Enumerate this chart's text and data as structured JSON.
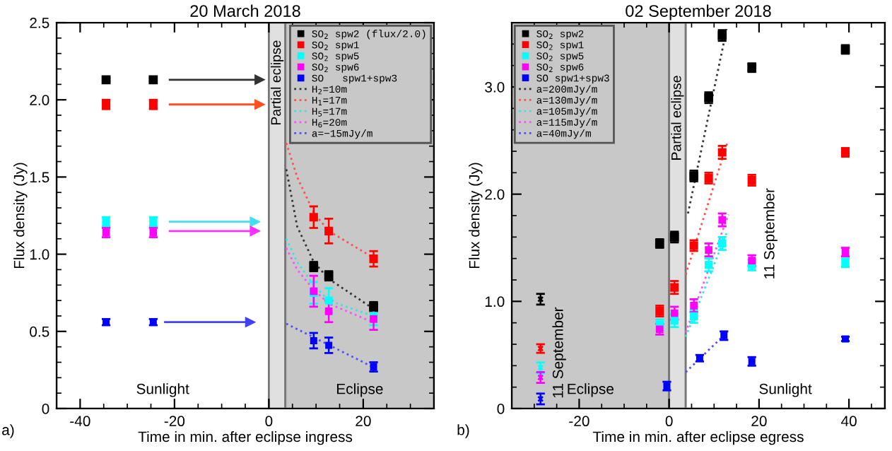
{
  "chart_data": [
    {
      "type": "scatter",
      "title": "20 March 2018",
      "xlabel": "Time in min. after eclipse ingress",
      "ylabel": "Flux density (Jy)",
      "xlim": [
        -45,
        35
      ],
      "xticks": [
        -40,
        -20,
        0,
        20
      ],
      "ylim": [
        0,
        2.5
      ],
      "yticks": [
        0,
        0.5,
        {
          "value": 1.0,
          "label": "1.0"
        },
        1.5,
        {
          "value": 2.0,
          "label": "2.0"
        },
        2.5
      ],
      "legend": "top right",
      "bands": [
        {
          "axis": "x",
          "from": -45,
          "to": 0,
          "label": "Sunlight",
          "color": "#ffffff"
        },
        {
          "axis": "x",
          "from": 0,
          "to": 3.5,
          "label": "Partial eclipse",
          "color": "#e0e0e0"
        },
        {
          "axis": "x",
          "from": 3.5,
          "to": 35,
          "label": "Eclipse",
          "color": "#c8c8c8"
        }
      ],
      "annotations": [
        "a)"
      ],
      "series": [
        {
          "name": "SO$_{2}$ spw2 (flux/2.0)",
          "color": "#000000",
          "marker": "square",
          "x": [
            -34.5,
            -24.5,
            9.5,
            12.7,
            22.2
          ],
          "values": [
            2.13,
            2.13,
            0.92,
            0.86,
            0.66
          ],
          "errors": [
            0.01,
            0.01,
            0.03,
            0.03,
            0.03
          ]
        },
        {
          "name": "SO$_{2}$ spw1",
          "color": "#ff0000",
          "marker": "square",
          "x": [
            -34.5,
            -24.5,
            9.5,
            12.7,
            22.2
          ],
          "values": [
            1.97,
            1.97,
            1.24,
            1.15,
            0.97
          ],
          "errors": [
            0.03,
            0.03,
            0.07,
            0.08,
            0.05
          ]
        },
        {
          "name": "SO$_{2}$ spw5",
          "color": "#00ffff",
          "marker": "square",
          "x": [
            -34.5,
            -24.5,
            9.5,
            12.7,
            22.2
          ],
          "values": [
            1.21,
            1.21,
            0.75,
            0.7,
            0.6
          ],
          "errors": [
            0.03,
            0.03,
            0.07,
            0.08,
            0.06
          ]
        },
        {
          "name": "SO$_{2}$ spw6",
          "color": "#ff00ff",
          "marker": "square",
          "x": [
            -34.5,
            -24.5,
            9.5,
            12.7,
            22.2
          ],
          "values": [
            1.14,
            1.14,
            0.76,
            0.63,
            0.58
          ],
          "errors": [
            0.03,
            0.03,
            0.1,
            0.07,
            0.07
          ]
        },
        {
          "name": "SO   spw1+spw3",
          "color": "#0000ff",
          "marker": "square",
          "x": [
            -34.5,
            -24.5,
            9.5,
            12.7,
            22.2
          ],
          "values": [
            0.56,
            0.56,
            0.44,
            0.41,
            0.27
          ],
          "errors": [
            0.02,
            0.02,
            0.05,
            0.05,
            0.03
          ]
        },
        {
          "type": "line",
          "name": "H$_{2}$=10m",
          "color": "#333333",
          "line_style": "dotted",
          "x": [
            3.7,
            6,
            9.5,
            12.7,
            22
          ],
          "values": [
            1.55,
            1.18,
            0.95,
            0.84,
            0.65
          ]
        },
        {
          "type": "line",
          "name": "H$_{1}$=17m",
          "color": "#ff5050",
          "line_style": "dotted",
          "x": [
            3.7,
            6,
            9.5,
            12.7,
            22
          ],
          "values": [
            1.72,
            1.5,
            1.27,
            1.15,
            0.98
          ]
        },
        {
          "type": "line",
          "name": "H$_{5}$=17m",
          "color": "#40e0e0",
          "line_style": "dotted",
          "x": [
            3.7,
            6,
            9.5,
            12.7,
            22
          ],
          "values": [
            1.1,
            0.95,
            0.8,
            0.7,
            0.6
          ]
        },
        {
          "type": "line",
          "name": "H$_{6}$=20m",
          "color": "#ff50ff",
          "line_style": "dotted",
          "x": [
            3.7,
            6,
            9.5,
            12.7,
            22
          ],
          "values": [
            1.04,
            0.9,
            0.77,
            0.68,
            0.56
          ]
        },
        {
          "type": "line",
          "name": "a=−15mJy/m",
          "color": "#5050ff",
          "line_style": "dotted",
          "x": [
            3.7,
            22
          ],
          "values": [
            0.55,
            0.27
          ]
        },
        {
          "type": "line",
          "color": "#333333",
          "line_style": "solid",
          "marker": "triangle",
          "x": [
            -21,
            -2
          ],
          "values": [
            2.13,
            2.13
          ]
        },
        {
          "type": "line",
          "color": "#ff5020",
          "line_style": "solid",
          "marker": "triangle",
          "x": [
            -21,
            -2
          ],
          "values": [
            1.97,
            1.97
          ]
        },
        {
          "type": "line",
          "color": "#40e0f0",
          "line_style": "solid",
          "marker": "triangle",
          "x": [
            -21,
            -3
          ],
          "values": [
            1.21,
            1.21
          ]
        },
        {
          "type": "line",
          "color": "#ff30ff",
          "line_style": "solid",
          "marker": "triangle",
          "x": [
            -21,
            -3
          ],
          "values": [
            1.15,
            1.15
          ]
        },
        {
          "type": "line",
          "color": "#4040ff",
          "line_style": "solid",
          "marker": "triangle",
          "x": [
            -22,
            -4
          ],
          "values": [
            0.56,
            0.56
          ]
        }
      ]
    },
    {
      "type": "scatter",
      "title": "02 September 2018",
      "xlabel": "Time in min. after eclipse egress",
      "ylabel": "Flux density (Jy)",
      "xlim": [
        -35,
        48
      ],
      "xticks": [
        -20,
        0,
        20,
        40
      ],
      "ylim": [
        0,
        3.6
      ],
      "yticks": [
        0,
        {
          "value": 1.0,
          "label": "1.0"
        },
        {
          "value": 2.0,
          "label": "2.0"
        },
        {
          "value": 3.0,
          "label": "3.0"
        }
      ],
      "legend": "top left",
      "bands": [
        {
          "axis": "x",
          "from": -35,
          "to": 0,
          "label": "Eclipse",
          "color": "#c8c8c8"
        },
        {
          "axis": "x",
          "from": 0,
          "to": 3.7,
          "label": "Partial eclipse",
          "color": "#e0e0e0"
        },
        {
          "axis": "x",
          "from": 3.7,
          "to": 48,
          "label": "Sunlight",
          "color": "#ffffff"
        }
      ],
      "annotations": [
        "b)",
        {
          "text": "11 September",
          "x": -28.6,
          "y": 1.02
        },
        {
          "text": "11 September",
          "x": 18.4,
          "y": 2.13
        }
      ],
      "series": [
        {
          "name": "SO$_{2}$ spw2",
          "color": "#000000",
          "marker": "square",
          "x": [
            -2.1,
            1.2,
            5.5,
            8.8,
            11.8,
            18.4,
            39.2
          ],
          "values": [
            1.54,
            1.6,
            2.17,
            2.9,
            3.48,
            3.18,
            3.35
          ],
          "errors": [
            0.04,
            0.05,
            0.05,
            0.05,
            0.05,
            0.04,
            0.04
          ]
        },
        {
          "name": "SO$_{2}$ spw1",
          "color": "#ff0000",
          "marker": "square",
          "x": [
            -2.1,
            1.2,
            5.5,
            8.8,
            11.8,
            18.4,
            39.2
          ],
          "values": [
            0.91,
            1.13,
            1.52,
            2.15,
            2.39,
            2.13,
            2.39
          ],
          "errors": [
            0.05,
            0.06,
            0.05,
            0.05,
            0.06,
            0.05,
            0.04
          ]
        },
        {
          "name": "SO$_{2}$ spw5",
          "color": "#00ffff",
          "marker": "square",
          "x": [
            -2.1,
            1.2,
            5.5,
            8.8,
            11.8,
            18.4,
            39.2
          ],
          "values": [
            0.78,
            0.82,
            0.86,
            1.34,
            1.54,
            1.34,
            1.36
          ],
          "errors": [
            0.05,
            0.06,
            0.06,
            0.06,
            0.06,
            0.05,
            0.04
          ]
        },
        {
          "name": "SO$_{2}$ spw6",
          "color": "#ff00ff",
          "marker": "square",
          "x": [
            -2.1,
            1.2,
            5.5,
            8.8,
            11.8,
            18.4,
            39.2
          ],
          "values": [
            0.74,
            0.89,
            0.96,
            1.48,
            1.76,
            1.38,
            1.46
          ],
          "errors": [
            0.05,
            0.06,
            0.06,
            0.06,
            0.06,
            0.05,
            0.04
          ]
        },
        {
          "name": "SO spw1+spw3",
          "color": "#0000ff",
          "marker": "square",
          "x": [
            -0.5,
            6.8,
            12.2,
            18.4,
            39.2
          ],
          "values": [
            0.21,
            0.47,
            0.68,
            0.44,
            0.65
          ],
          "errors": [
            0.04,
            0.03,
            0.04,
            0.04,
            0.02
          ]
        },
        {
          "color": "#000000",
          "marker": "cross",
          "x": [
            -28.6
          ],
          "values": [
            1.02
          ],
          "errors": [
            0.05
          ]
        },
        {
          "color": "#ff0000",
          "marker": "cross",
          "x": [
            -28.6
          ],
          "values": [
            0.56
          ],
          "errors": [
            0.04
          ]
        },
        {
          "color": "#00ffff",
          "marker": "cross",
          "x": [
            -28.6
          ],
          "values": [
            0.38
          ],
          "errors": [
            0.05
          ]
        },
        {
          "color": "#ff00ff",
          "marker": "cross",
          "x": [
            -28.6
          ],
          "values": [
            0.29
          ],
          "errors": [
            0.05
          ]
        },
        {
          "color": "#0000ff",
          "marker": "cross",
          "x": [
            -28.6
          ],
          "values": [
            0.09
          ],
          "errors": [
            0.05
          ]
        },
        {
          "type": "line",
          "name": "a=200mJy/m",
          "color": "#333333",
          "line_style": "dotted",
          "x": [
            4.2,
            12.8
          ],
          "values": [
            1.82,
            3.54
          ]
        },
        {
          "type": "line",
          "name": "a=130mJy/m",
          "color": "#ff5050",
          "line_style": "dotted",
          "x": [
            3.7,
            13.1
          ],
          "values": [
            1.25,
            2.5
          ]
        },
        {
          "type": "line",
          "name": "a=105mJy/m",
          "color": "#40e0e0",
          "line_style": "dotted",
          "x": [
            3.7,
            12.8
          ],
          "values": [
            0.67,
            1.64
          ]
        },
        {
          "type": "line",
          "name": "a=115mJy/m",
          "color": "#ff50ff",
          "line_style": "dotted",
          "x": [
            3.7,
            13.2
          ],
          "values": [
            0.71,
            1.81
          ]
        },
        {
          "type": "line",
          "name": "a=40mJy/m",
          "color": "#5050ff",
          "line_style": "dotted",
          "x": [
            3.7,
            12.6
          ],
          "values": [
            0.34,
            0.7
          ]
        }
      ]
    }
  ]
}
